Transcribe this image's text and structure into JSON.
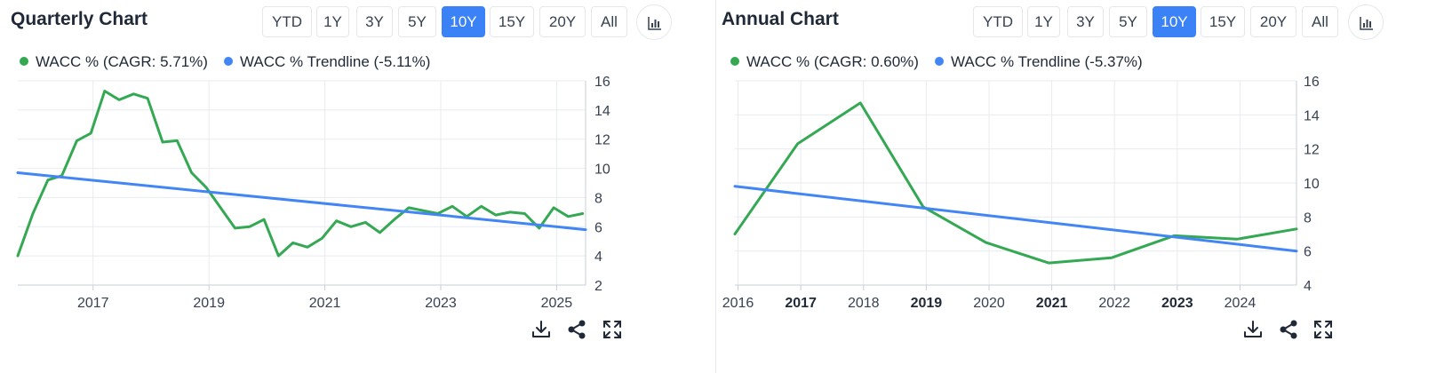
{
  "colors": {
    "accent": "#3b82f6",
    "wacc": "#34a853",
    "trend": "#4285f4",
    "grid": "#e8ebef"
  },
  "icons": {
    "chart_type": "bar-chart-icon",
    "download": "download-icon",
    "share": "share-icon",
    "fullscreen": "expand-icon"
  },
  "chart_data": [
    {
      "type": "line",
      "title": "Quarterly Chart",
      "ranges": [
        "YTD",
        "1Y",
        "3Y",
        "5Y",
        "10Y",
        "15Y",
        "20Y",
        "All"
      ],
      "active_range": "10Y",
      "legend": [
        "WACC % (CAGR: 5.71%)",
        "WACC % Trendline (-5.11%)"
      ],
      "xlim": [
        2015.7,
        2025.5
      ],
      "ylim": [
        2,
        16
      ],
      "yticks": [
        2,
        4,
        6,
        8,
        10,
        12,
        14,
        16
      ],
      "xticks": [
        {
          "value": 2017,
          "label": "2017",
          "bold": false
        },
        {
          "value": 2019,
          "label": "2019",
          "bold": false
        },
        {
          "value": 2021,
          "label": "2021",
          "bold": false
        },
        {
          "value": 2023,
          "label": "2023",
          "bold": false
        },
        {
          "value": 2025,
          "label": "2025",
          "bold": false
        }
      ],
      "series": [
        {
          "name": "WACC % (CAGR: 5.71%)",
          "color": "#34a853",
          "x": [
            2015.7,
            2015.96,
            2016.22,
            2016.46,
            2016.72,
            2016.96,
            2017.2,
            2017.45,
            2017.7,
            2017.94,
            2018.2,
            2018.45,
            2018.7,
            2018.95,
            2019.2,
            2019.45,
            2019.7,
            2019.95,
            2020.2,
            2020.45,
            2020.7,
            2020.95,
            2021.2,
            2021.45,
            2021.7,
            2021.95,
            2022.2,
            2022.45,
            2022.7,
            2022.95,
            2023.2,
            2023.45,
            2023.7,
            2023.95,
            2024.2,
            2024.45,
            2024.7,
            2024.95,
            2025.2,
            2025.45
          ],
          "y": [
            4.0,
            6.9,
            9.2,
            9.5,
            11.9,
            12.4,
            15.3,
            14.7,
            15.1,
            14.8,
            11.8,
            11.9,
            9.7,
            8.7,
            7.3,
            5.9,
            6.0,
            6.5,
            4.0,
            4.9,
            4.6,
            5.2,
            6.4,
            6.0,
            6.3,
            5.6,
            6.5,
            7.3,
            7.1,
            6.9,
            7.4,
            6.7,
            7.4,
            6.8,
            7.0,
            6.9,
            5.9,
            7.3,
            6.7,
            6.9
          ]
        },
        {
          "name": "WACC % Trendline (-5.11%)",
          "color": "#4285f4",
          "x": [
            2015.7,
            2025.5
          ],
          "y": [
            9.7,
            5.8
          ]
        }
      ]
    },
    {
      "type": "line",
      "title": "Annual Chart",
      "ranges": [
        "YTD",
        "1Y",
        "3Y",
        "5Y",
        "10Y",
        "15Y",
        "20Y",
        "All"
      ],
      "active_range": "10Y",
      "legend": [
        "WACC % (CAGR: 0.60%)",
        "WACC % Trendline (-5.37%)"
      ],
      "xlim": [
        2015.95,
        2024.9
      ],
      "ylim": [
        4,
        16
      ],
      "yticks": [
        4,
        6,
        8,
        10,
        12,
        14,
        16
      ],
      "xticks": [
        {
          "value": 2016,
          "label": "2016",
          "bold": false
        },
        {
          "value": 2017,
          "label": "2017",
          "bold": true
        },
        {
          "value": 2018,
          "label": "2018",
          "bold": false
        },
        {
          "value": 2019,
          "label": "2019",
          "bold": true
        },
        {
          "value": 2020,
          "label": "2020",
          "bold": false
        },
        {
          "value": 2021,
          "label": "2021",
          "bold": true
        },
        {
          "value": 2022,
          "label": "2022",
          "bold": false
        },
        {
          "value": 2023,
          "label": "2023",
          "bold": true
        },
        {
          "value": 2024,
          "label": "2024",
          "bold": false
        }
      ],
      "series": [
        {
          "name": "WACC % (CAGR: 0.60%)",
          "color": "#34a853",
          "x": [
            2015.95,
            2016.95,
            2017.95,
            2018.95,
            2019.95,
            2020.95,
            2021.95,
            2022.95,
            2023.95,
            2024.9
          ],
          "y": [
            7.0,
            12.3,
            14.7,
            8.6,
            6.5,
            5.3,
            5.6,
            6.9,
            6.7,
            7.3
          ]
        },
        {
          "name": "WACC % Trendline (-5.37%)",
          "color": "#4285f4",
          "x": [
            2015.95,
            2024.9
          ],
          "y": [
            9.8,
            6.0
          ]
        }
      ]
    }
  ]
}
